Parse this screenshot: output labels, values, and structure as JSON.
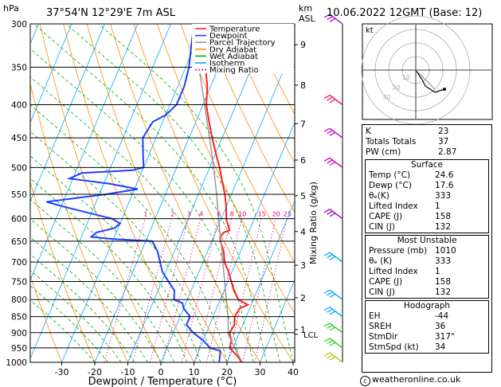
{
  "header": {
    "location": "37°54'N  12°29'E  7m  ASL",
    "datetime": "10.06.2022  12GMT  (Base: 12)",
    "pressure_unit": "hPa",
    "height_unit_km": "km",
    "height_unit_asl": "ASL"
  },
  "legend": {
    "items": [
      {
        "label": "Temperature",
        "color": "#ff2020",
        "style": "solid"
      },
      {
        "label": "Dewpoint",
        "color": "#1f3fff",
        "style": "solid"
      },
      {
        "label": "Parcel Trajectory",
        "color": "#999999",
        "style": "solid"
      },
      {
        "label": "Dry Adiabat",
        "color": "#ff8c00",
        "style": "solid"
      },
      {
        "label": "Wet Adiabat",
        "color": "#00b000",
        "style": "solid"
      },
      {
        "label": "Isotherm",
        "color": "#00aaff",
        "style": "solid"
      },
      {
        "label": "Mixing Ratio",
        "color": "#e0008c",
        "style": "dotted"
      }
    ]
  },
  "chart_data": {
    "type": "line",
    "xlabel": "Dewpoint / Temperature (°C)",
    "ylabel_right": "Mixing Ratio (g/kg)",
    "x_ticks": [
      -30,
      -20,
      -10,
      0,
      10,
      20,
      30,
      40
    ],
    "xlim": [
      -40,
      40
    ],
    "pressure_levels": [
      300,
      350,
      400,
      450,
      500,
      550,
      600,
      650,
      700,
      750,
      800,
      850,
      900,
      950,
      1000
    ],
    "ylim_hpa": [
      1000,
      300
    ],
    "km_labels": [
      {
        "km": "1",
        "p": 890
      },
      {
        "km": "2",
        "p": 795
      },
      {
        "km": "3",
        "p": 708
      },
      {
        "km": "4",
        "p": 628
      },
      {
        "km": "5",
        "p": 553
      },
      {
        "km": "6",
        "p": 487
      },
      {
        "km": "7",
        "p": 428
      },
      {
        "km": "8",
        "p": 373
      },
      {
        "km": "9",
        "p": 323
      }
    ],
    "lcl_label": "LCL",
    "lcl_p": 905,
    "mixing_ratio_labels": [
      "1",
      "2",
      "3",
      "4",
      "6",
      "8",
      "10",
      "15",
      "20",
      "25"
    ],
    "mixing_ratio_label_p": 595,
    "series": [
      {
        "name": "Temperature",
        "color": "#ff2020",
        "points": [
          [
            1000,
            24.6
          ],
          [
            975,
            22
          ],
          [
            950,
            19
          ],
          [
            925,
            18.5
          ],
          [
            900,
            17
          ],
          [
            875,
            17.5
          ],
          [
            850,
            16.5
          ],
          [
            825,
            17
          ],
          [
            815,
            19
          ],
          [
            800,
            15.5
          ],
          [
            775,
            13
          ],
          [
            750,
            11
          ],
          [
            725,
            9
          ],
          [
            700,
            6.5
          ],
          [
            675,
            5
          ],
          [
            650,
            2.6
          ],
          [
            640,
            2
          ],
          [
            630,
            2.5
          ],
          [
            625,
            4
          ],
          [
            600,
            1.5
          ],
          [
            575,
            0
          ],
          [
            550,
            -2
          ],
          [
            525,
            -4.5
          ],
          [
            500,
            -7
          ],
          [
            475,
            -10
          ],
          [
            450,
            -13
          ],
          [
            425,
            -16
          ],
          [
            400,
            -19
          ],
          [
            375,
            -21
          ],
          [
            350,
            -24
          ],
          [
            325,
            -27.5
          ],
          [
            300,
            -31
          ]
        ]
      },
      {
        "name": "Dewpoint",
        "color": "#1f3fff",
        "points": [
          [
            1000,
            17.6
          ],
          [
            975,
            17
          ],
          [
            960,
            16.5
          ],
          [
            950,
            13
          ],
          [
            925,
            10
          ],
          [
            900,
            6
          ],
          [
            875,
            3
          ],
          [
            850,
            3
          ],
          [
            825,
            0
          ],
          [
            810,
            -1
          ],
          [
            800,
            -4
          ],
          [
            775,
            -5
          ],
          [
            750,
            -8
          ],
          [
            725,
            -11
          ],
          [
            700,
            -13
          ],
          [
            675,
            -15
          ],
          [
            650,
            -18
          ],
          [
            645,
            -30
          ],
          [
            640,
            -37
          ],
          [
            630,
            -36
          ],
          [
            620,
            -31
          ],
          [
            610,
            -30
          ],
          [
            600,
            -33
          ],
          [
            575,
            -49
          ],
          [
            565,
            -55
          ],
          [
            550,
            -38
          ],
          [
            540,
            -29
          ],
          [
            530,
            -38
          ],
          [
            520,
            -51
          ],
          [
            510,
            -48
          ],
          [
            505,
            -33
          ],
          [
            500,
            -30
          ],
          [
            475,
            -32
          ],
          [
            450,
            -34
          ],
          [
            425,
            -33
          ],
          [
            415,
            -30
          ],
          [
            400,
            -28
          ],
          [
            375,
            -28
          ],
          [
            350,
            -29
          ],
          [
            325,
            -31
          ],
          [
            300,
            -33
          ]
        ]
      },
      {
        "name": "Parcel Trajectory",
        "color": "#999999",
        "points": [
          [
            1000,
            24.6
          ],
          [
            950,
            20.5
          ],
          [
            905,
            16.8
          ],
          [
            850,
            14.5
          ],
          [
            800,
            11.8
          ],
          [
            750,
            9
          ],
          [
            700,
            6
          ],
          [
            650,
            2.8
          ],
          [
            600,
            -0.8
          ],
          [
            550,
            -4.5
          ],
          [
            500,
            -8.8
          ],
          [
            450,
            -13.8
          ],
          [
            400,
            -19.5
          ],
          [
            350,
            -26
          ],
          [
            300,
            -33.5
          ]
        ]
      }
    ],
    "wind_barbs": [
      {
        "p": 1000,
        "color": "#c0c000"
      },
      {
        "p": 950,
        "color": "#33cc33"
      },
      {
        "p": 900,
        "color": "#33cc33"
      },
      {
        "p": 850,
        "color": "#00aaff"
      },
      {
        "p": 800,
        "color": "#00aaff"
      },
      {
        "p": 700,
        "color": "#00aaff"
      },
      {
        "p": 600,
        "color": "#9900cc"
      },
      {
        "p": 500,
        "color": "#cc00cc"
      },
      {
        "p": 450,
        "color": "#cc00cc"
      },
      {
        "p": 400,
        "color": "#ff0066"
      },
      {
        "p": 300,
        "color": "#9900cc"
      }
    ]
  },
  "hodograph": {
    "unit_label": "kt",
    "ring_labels": [
      "10",
      "20",
      "30"
    ],
    "points": [
      [
        0,
        0
      ],
      [
        4,
        -6
      ],
      [
        6,
        -10
      ],
      [
        12,
        -14
      ],
      [
        18,
        -12
      ]
    ],
    "storm_motion": [
      12,
      -12
    ]
  },
  "stats": {
    "top": [
      {
        "label": "K",
        "value": "23"
      },
      {
        "label": "Totals Totals",
        "value": "37"
      },
      {
        "label": "PW (cm)",
        "value": "2.87"
      }
    ],
    "surface": {
      "title": "Surface",
      "rows": [
        {
          "label": "Temp (°C)",
          "value": "24.6"
        },
        {
          "label": "Dewp (°C)",
          "value": "17.6"
        },
        {
          "label": "θₑ(K)",
          "value": "333"
        },
        {
          "label": "Lifted Index",
          "value": "1"
        },
        {
          "label": "CAPE (J)",
          "value": "158"
        },
        {
          "label": "CIN (J)",
          "value": "132"
        }
      ]
    },
    "most_unstable": {
      "title": "Most Unstable",
      "rows": [
        {
          "label": "Pressure (mb)",
          "value": "1010"
        },
        {
          "label": "θₑ (K)",
          "value": "333"
        },
        {
          "label": "Lifted Index",
          "value": "1"
        },
        {
          "label": "CAPE (J)",
          "value": "158"
        },
        {
          "label": "CIN (J)",
          "value": "132"
        }
      ]
    },
    "hodograph_box": {
      "title": "Hodograph",
      "rows": [
        {
          "label": "EH",
          "value": "-44"
        },
        {
          "label": "SREH",
          "value": "36"
        },
        {
          "label": "StmDir",
          "value": "317°"
        },
        {
          "label": "StmSpd (kt)",
          "value": "34"
        }
      ]
    }
  },
  "footer": {
    "copyright_icon": "copyright-icon",
    "text": "weatheronline.co.uk"
  }
}
